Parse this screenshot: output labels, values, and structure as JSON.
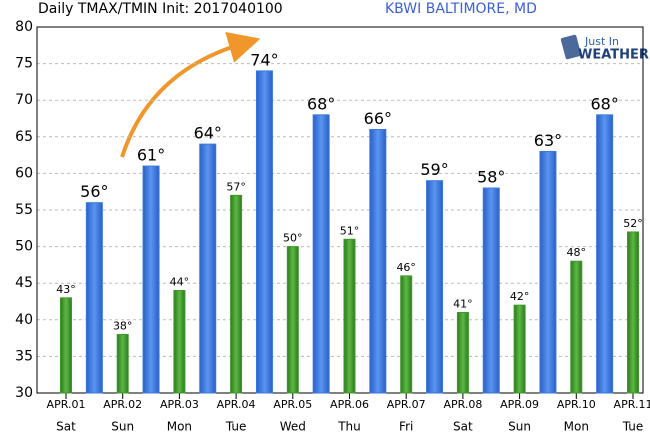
{
  "chart_data": {
    "type": "bar",
    "title": "Daily TMAX/TMIN Init: 2017040100",
    "subtitle": "KBWI BALTIMORE, MD",
    "logo": [
      "Just In",
      "WEATHER"
    ],
    "categories": [
      "APR.01",
      "APR.02",
      "APR.03",
      "APR.04",
      "APR.05",
      "APR.06",
      "APR.07",
      "APR.08",
      "APR.09",
      "APR.10",
      "APR.11"
    ],
    "weekdays": [
      "Sat",
      "Sun",
      "Mon",
      "Tue",
      "Wed",
      "Thu",
      "Fri",
      "Sat",
      "Sun",
      "Mon",
      "Tue"
    ],
    "series": [
      {
        "name": "TMAX",
        "color": "#3a78e0",
        "values": [
          56,
          61,
          64,
          74,
          68,
          66,
          59,
          58,
          63,
          68,
          null
        ],
        "value_labels": [
          "56°",
          "61°",
          "64°",
          "74°",
          "68°",
          "66°",
          "59°",
          "58°",
          "63°",
          "68°",
          null
        ]
      },
      {
        "name": "TMIN",
        "color": "#3f9a2c",
        "values": [
          43,
          38,
          44,
          57,
          50,
          51,
          46,
          41,
          42,
          48,
          52
        ],
        "value_labels": [
          "43°",
          "38°",
          "44°",
          "57°",
          "50°",
          "51°",
          "46°",
          "41°",
          "42°",
          "48°",
          "52°"
        ]
      }
    ],
    "ylim": [
      30,
      80
    ],
    "yticks": [
      30,
      35,
      40,
      45,
      50,
      55,
      60,
      65,
      70,
      75,
      80
    ],
    "grid": true
  }
}
